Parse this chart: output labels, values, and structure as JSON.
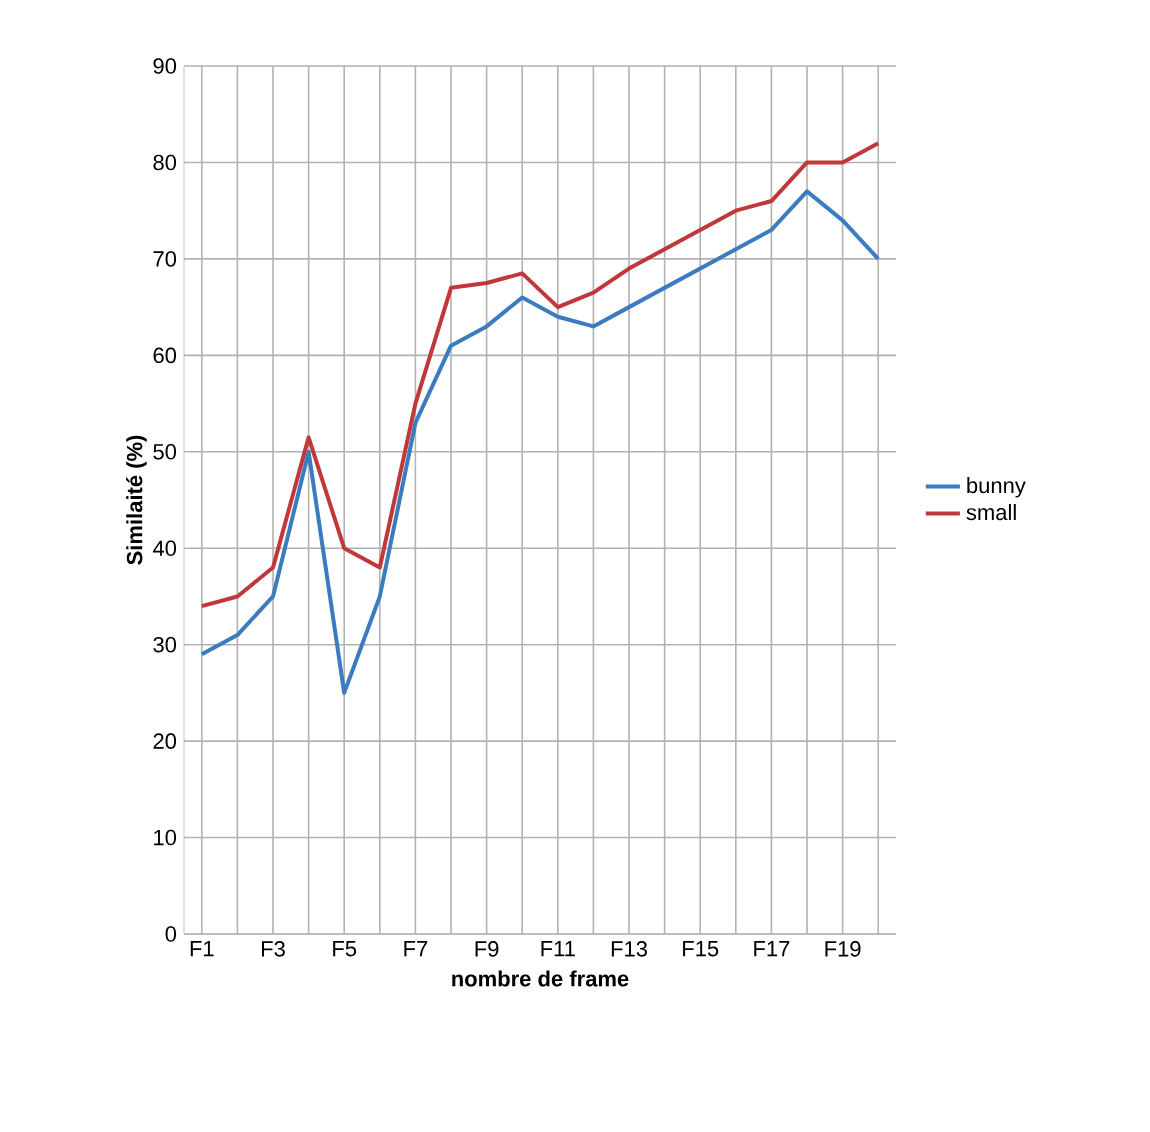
{
  "chart_data": {
    "type": "line",
    "xlabel": "nombre de frame",
    "ylabel": "Similaité (%)",
    "categories": [
      "F1",
      null,
      "F3",
      null,
      "F5",
      null,
      "F7",
      null,
      "F9",
      null,
      "F11",
      null,
      "F13",
      null,
      "F15",
      null,
      "F17",
      null,
      "F19",
      null
    ],
    "series": [
      {
        "name": "bunny",
        "color": "#3b7bbf",
        "values": [
          29,
          31,
          35,
          50,
          25,
          35,
          53,
          61,
          63,
          66,
          64,
          63,
          65,
          67,
          69,
          71,
          73,
          77,
          74,
          70
        ]
      },
      {
        "name": "small",
        "color": "#c0383a",
        "values": [
          34,
          35,
          38,
          51.5,
          40,
          38,
          55,
          67,
          67.5,
          68.5,
          65,
          66.5,
          69,
          71,
          73,
          75,
          76,
          80,
          80,
          82
        ]
      }
    ],
    "ylim": [
      0,
      90
    ],
    "yticks": [
      0,
      10,
      20,
      30,
      40,
      50,
      60,
      70,
      80,
      90
    ],
    "grid": true,
    "legend": "right",
    "marker": "none",
    "line_style": "solid"
  }
}
